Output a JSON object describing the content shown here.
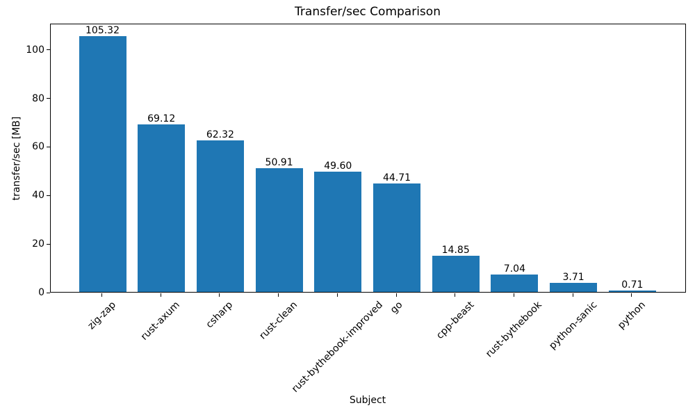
{
  "chart_data": {
    "type": "bar",
    "title": "Transfer/sec Comparison",
    "xlabel": "Subject",
    "ylabel": "transfer/sec [MB]",
    "categories": [
      "zig-zap",
      "rust-axum",
      "csharp",
      "rust-clean",
      "rust-bythebook-improved",
      "go",
      "cpp-beast",
      "rust-bythebook",
      "python-sanic",
      "python"
    ],
    "values": [
      105.32,
      69.12,
      62.32,
      50.91,
      49.6,
      44.71,
      14.85,
      7.04,
      3.71,
      0.71
    ],
    "value_labels": [
      "105.32",
      "69.12",
      "62.32",
      "50.91",
      "49.60",
      "44.71",
      "14.85",
      "7.04",
      "3.71",
      "0.71"
    ],
    "yticks": [
      0,
      20,
      40,
      60,
      80,
      100
    ],
    "ylim": [
      0,
      110.8
    ],
    "bar_color": "#1f77b4",
    "grid": false,
    "legend_position": "none",
    "x_tick_rotation_deg": 45
  }
}
